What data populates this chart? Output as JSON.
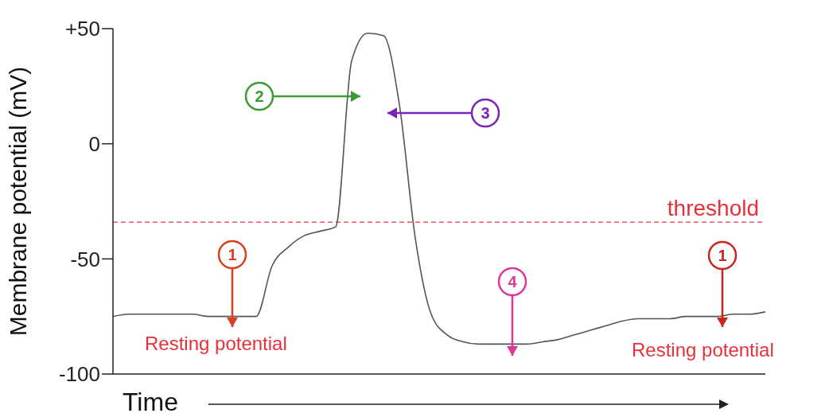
{
  "chart_data": {
    "type": "line",
    "ylabel": "Membrane potential (mV)",
    "xlabel": "Time",
    "categories": [
      null,
      null,
      null,
      null,
      null,
      null,
      null,
      null,
      null,
      null,
      null,
      null,
      null,
      null,
      null,
      null,
      null,
      null,
      null,
      null,
      null,
      null,
      null,
      null,
      null,
      null,
      null,
      null,
      null,
      null,
      null,
      null,
      null,
      null,
      null,
      null,
      null,
      null,
      null,
      null,
      null,
      null
    ],
    "series": [
      {
        "color": "#555555",
        "values": [
          -75,
          -74,
          -74,
          -74,
          -74,
          -74,
          -75,
          -75,
          -75,
          -75,
          -53,
          -45,
          -40,
          -38,
          -36,
          36,
          48,
          47,
          17,
          -41,
          -74,
          -83,
          -86,
          -87,
          -87,
          -87,
          -87,
          -86,
          -85,
          -83,
          -81,
          -79,
          -77,
          -76,
          -76,
          -76,
          -75,
          -75,
          -75,
          -74,
          -74,
          -73
        ]
      }
    ],
    "ylim": [
      -100,
      50
    ],
    "yticks": [
      {
        "value": 50,
        "label": "+50"
      },
      0,
      -50,
      -100
    ],
    "ref_lines": [
      {
        "axis": "y",
        "value": -34,
        "label": "threshold",
        "color": "#e8303a",
        "line_style": "dashed"
      }
    ],
    "annotations": [
      "1",
      "2",
      "3",
      "4",
      "1",
      "Resting potential",
      "Resting potential"
    ],
    "tick_labels": "y"
  }
}
